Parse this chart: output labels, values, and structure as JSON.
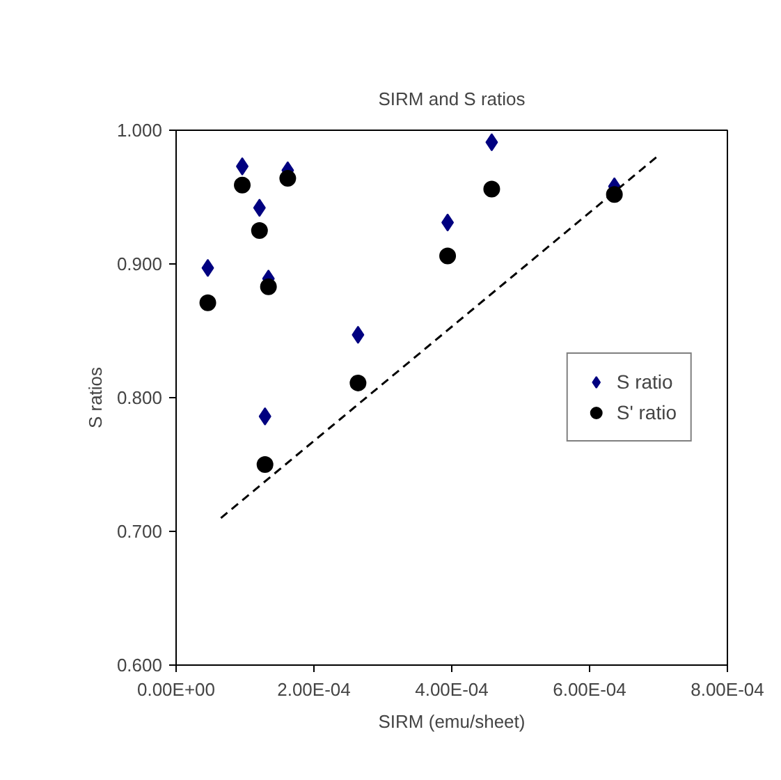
{
  "chart_data": {
    "type": "scatter",
    "title": "SIRM and S ratios",
    "xlabel": "SIRM (emu/sheet)",
    "ylabel": "S ratios",
    "x": [
      4.6e-05,
      9.6e-05,
      0.000121,
      0.000134,
      0.000162,
      0.000129,
      0.000264,
      0.000394,
      0.000458,
      0.000636
    ],
    "series": [
      {
        "name": "S ratio",
        "color": "#000080",
        "marker": "diamond",
        "values": [
          0.897,
          0.973,
          0.942,
          0.889,
          0.97,
          0.786,
          0.847,
          0.931,
          0.991,
          0.958
        ]
      },
      {
        "name": "S' ratio",
        "color": "#000000",
        "marker": "circle",
        "values": [
          0.871,
          0.959,
          0.925,
          0.883,
          0.964,
          0.75,
          0.811,
          0.906,
          0.956,
          0.952
        ]
      },
      {
        "type": "line",
        "color": "#000000",
        "line_style": "dashed",
        "marker": "none",
        "x": [
          6.5e-05,
          0.000702
        ],
        "values": [
          0.71,
          0.982
        ]
      }
    ],
    "xlim": [
      0,
      0.0008
    ],
    "xticks": [
      {
        "value": 0,
        "label": "0.00E+00"
      },
      {
        "value": 0.0002,
        "label": "2.00E-04"
      },
      {
        "value": 0.0004,
        "label": "4.00E-04"
      },
      {
        "value": 0.0006,
        "label": "6.00E-04"
      },
      {
        "value": 0.0008,
        "label": "8.00E-04"
      }
    ],
    "ylim": [
      0.6,
      1.0
    ],
    "yticks": [
      {
        "value": 0.6,
        "label": "0.600"
      },
      {
        "value": 0.7,
        "label": "0.700"
      },
      {
        "value": 0.8,
        "label": "0.800"
      },
      {
        "value": 0.9,
        "label": "0.900"
      },
      {
        "value": 1.0,
        "label": "1.000"
      }
    ],
    "grid": false,
    "legend": "right"
  }
}
